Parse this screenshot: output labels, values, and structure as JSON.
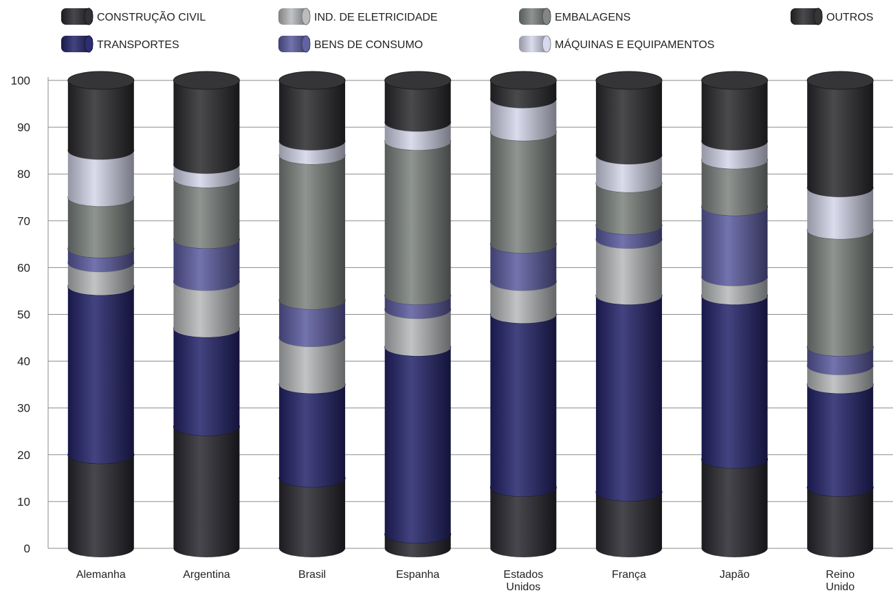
{
  "chart_data": {
    "type": "bar",
    "stacked": true,
    "ylim": [
      0,
      100
    ],
    "yticks": [
      "0",
      "10",
      "20",
      "30",
      "40",
      "50",
      "60",
      "70",
      "80",
      "90",
      "100"
    ],
    "grid": true,
    "legend_position": "top",
    "categories": [
      [
        "Alemanha"
      ],
      [
        "Argentina"
      ],
      [
        "Brasil"
      ],
      [
        "Espanha"
      ],
      [
        "Estados",
        "Unidos"
      ],
      [
        "França"
      ],
      [
        "Japão"
      ],
      [
        "Reino",
        "Unido"
      ]
    ],
    "series": [
      {
        "name": "CONSTRUÇÃO CIVIL",
        "color": "#26262e",
        "values": [
          20,
          26,
          15,
          3,
          13,
          12,
          19,
          13
        ]
      },
      {
        "name": "TRANSPORTES",
        "color": "#22226a",
        "values": [
          36,
          21,
          20,
          40,
          37,
          42,
          35,
          22
        ]
      },
      {
        "name": "IND. DE ELETRICIDADE",
        "color": "#b6b8bb",
        "values": [
          5,
          10,
          10,
          8,
          7,
          12,
          4,
          4
        ]
      },
      {
        "name": "BENS DE CONSUMO",
        "color": "#5a5aa0",
        "values": [
          3,
          9,
          8,
          3,
          8,
          3,
          15,
          4
        ]
      },
      {
        "name": "EMBALAGENS",
        "color": "#7b817d",
        "values": [
          11,
          13,
          31,
          33,
          24,
          9,
          10,
          25
        ]
      },
      {
        "name": "MÁQUINAS E EQUIPAMENTOS",
        "color": "#d4d6ea",
        "values": [
          10,
          3,
          3,
          4,
          7,
          6,
          4,
          9
        ]
      },
      {
        "name": "OUTROS",
        "color": "#2a2a2e",
        "values": [
          15,
          18,
          13,
          9,
          4,
          16,
          13,
          23
        ]
      }
    ]
  }
}
